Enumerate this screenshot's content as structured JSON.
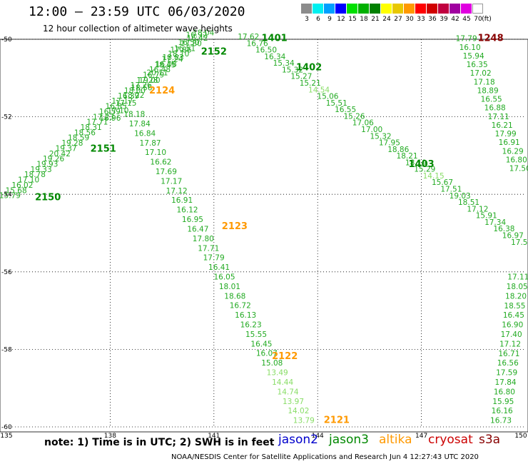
{
  "header": {
    "title": "12:00 – 23:59 UTC 06/03/2020",
    "subtitle": "12 hour collection of altimeter wave heights"
  },
  "legend": {
    "unit": "(ft)",
    "bins": [
      {
        "label": "3",
        "color": "#8c8c8c"
      },
      {
        "label": "6",
        "color": "#00f0f0"
      },
      {
        "label": "9",
        "color": "#00a0ff"
      },
      {
        "label": "12",
        "color": "#0000ff"
      },
      {
        "label": "15",
        "color": "#00e000"
      },
      {
        "label": "18",
        "color": "#00b000"
      },
      {
        "label": "21",
        "color": "#008000"
      },
      {
        "label": "24",
        "color": "#ffff00"
      },
      {
        "label": "27",
        "color": "#e8c800"
      },
      {
        "label": "30",
        "color": "#ff9900"
      },
      {
        "label": "33",
        "color": "#ff0000"
      },
      {
        "label": "36",
        "color": "#d00000"
      },
      {
        "label": "39",
        "color": "#c00040"
      },
      {
        "label": "42",
        "color": "#a000a0"
      },
      {
        "label": "45",
        "color": "#e000e0"
      },
      {
        "label": "70",
        "color": "#ffffff"
      }
    ]
  },
  "axes": {
    "lon_min": 135,
    "lon_max": 150,
    "lat_min": -60,
    "lat_max": -50,
    "x_ticks": [
      "135",
      "138",
      "141",
      "144",
      "147",
      "150"
    ],
    "y_ticks": [
      "-50",
      "-52",
      "-54",
      "-56",
      "-58",
      "-60"
    ]
  },
  "colors": {
    "jason2": "#0000cc",
    "jason3": "#008800",
    "altika": "#ff9900",
    "cryosat": "#cc0000",
    "s3a": "#880000",
    "obs_mid": "#22aa22",
    "obs_light": "#88dd66"
  },
  "tracks": [
    {
      "start": [
        135.1,
        -54.1
      ],
      "end": [
        140.7,
        -49.9
      ],
      "values": [
        "15.79",
        "15.68",
        "16.02",
        "17.10",
        "18.78",
        "19.33",
        "19.93",
        "19.26",
        "20.42",
        "19.37",
        "19.28",
        "18.59",
        "18.56",
        "18.31",
        "17.71",
        "17.23",
        "16.59",
        "16.85",
        "17.17",
        "16.39",
        "18.00",
        "17.26",
        "17.28",
        "16.79",
        "16.48",
        "16.08",
        "17.24",
        "18.10",
        "16.51",
        "17.80",
        "16.42",
        "18.04"
      ]
    },
    {
      "start": [
        138.0,
        -52.1
      ],
      "end": [
        140.5,
        -49.95
      ],
      "values": [
        "16.96",
        "17.10",
        "17.15",
        "18.22",
        "18.56",
        "19.00",
        "20.11",
        "18.45",
        "18.83",
        "17.86",
        "16.50",
        "16.92"
      ]
    },
    {
      "start": [
        138.7,
        -52.0
      ],
      "end": [
        143.6,
        -59.9
      ],
      "values": [
        "18.18",
        "17.84",
        "16.84",
        "17.87",
        "17.10",
        "16.62",
        "17.69",
        "17.17",
        "17.12",
        "16.91",
        "16.12",
        "16.95",
        "16.47",
        "17.80",
        "17.71",
        "17.79",
        "16.41",
        "16.05",
        "18.01",
        "18.68",
        "16.72",
        "16.13",
        "16.23",
        "15.55",
        "16.45",
        "16.07",
        "15.08",
        "13.49",
        "14.44",
        "14.74",
        "13.97",
        "14.02",
        "13.79"
      ]
    },
    {
      "start": [
        142.0,
        -50.0
      ],
      "end": [
        149.9,
        -55.3
      ],
      "values": [
        "17.62",
        "16.76",
        "16.50",
        "16.34",
        "15.34",
        "15.32",
        "15.27",
        "15.21",
        "14.54",
        "15.06",
        "15.51",
        "16.55",
        "15.26",
        "17.06",
        "17.00",
        "15.32",
        "17.95",
        "18.86",
        "18.21",
        "18.19",
        "15.29",
        "14.15",
        "15.67",
        "17.51",
        "19.03",
        "18.51",
        "17.12",
        "15.91",
        "17.34",
        "16.38",
        "16.97",
        "17.50"
      ]
    },
    {
      "start": [
        148.3,
        -50.05
      ],
      "end": [
        149.85,
        -53.4
      ],
      "values": [
        "17.79",
        "16.10",
        "15.94",
        "16.35",
        "17.02",
        "17.18",
        "18.89",
        "16.55",
        "16.88",
        "17.11",
        "16.21",
        "17.99",
        "16.91",
        "16.29",
        "16.80",
        "17.50"
      ]
    },
    {
      "start": [
        149.8,
        -56.2
      ],
      "end": [
        149.3,
        -59.9
      ],
      "values": [
        "17.11",
        "18.05",
        "18.20",
        "18.55",
        "16.45",
        "16.90",
        "17.40",
        "17.12",
        "16.71",
        "16.56",
        "17.59",
        "17.84",
        "16.80",
        "15.95",
        "16.16",
        "16.73"
      ]
    }
  ],
  "track_labels": [
    {
      "text": "1401",
      "lon": 142.75,
      "lat": -50.05,
      "sat": "jason3"
    },
    {
      "text": "1402",
      "lon": 143.75,
      "lat": -50.8,
      "sat": "jason3"
    },
    {
      "text": "1403",
      "lon": 147.0,
      "lat": -53.3,
      "sat": "jason3"
    },
    {
      "text": "1248",
      "lon": 149.0,
      "lat": -50.05,
      "sat": "s3a"
    },
    {
      "text": "2152",
      "lon": 141.0,
      "lat": -50.4,
      "sat": "jason3"
    },
    {
      "text": "2124",
      "lon": 139.5,
      "lat": -51.4,
      "sat": "altika"
    },
    {
      "text": "2151",
      "lon": 137.8,
      "lat": -52.9,
      "sat": "jason3"
    },
    {
      "text": "2150",
      "lon": 136.2,
      "lat": -54.15,
      "sat": "jason3"
    },
    {
      "text": "2123",
      "lon": 141.6,
      "lat": -54.9,
      "sat": "altika"
    },
    {
      "text": "2122",
      "lon": 143.05,
      "lat": -58.25,
      "sat": "altika"
    },
    {
      "text": "2121",
      "lon": 144.55,
      "lat": -59.9,
      "sat": "altika"
    }
  ],
  "footer": {
    "note": "note: 1) Time is in UTC; 2) SWH is in feet",
    "satellites": [
      "jason2",
      "jason3",
      "altika",
      "cryosat",
      "s3a"
    ],
    "credit": "NOAA/NESDIS Center for Satellite Applications and Research   Jun  4 12:27:43 UTC 2020"
  }
}
